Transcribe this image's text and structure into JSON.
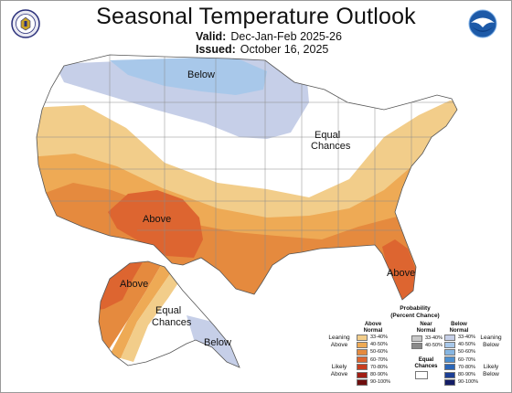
{
  "header": {
    "title": "Seasonal Temperature Outlook",
    "valid_label": "Valid:",
    "valid_value": "Dec-Jan-Feb 2025-26",
    "issued_label": "Issued:",
    "issued_value": "October 16, 2025"
  },
  "logos": {
    "left": "doc-seal-icon",
    "right": "noaa-logo-icon"
  },
  "map_labels": {
    "below_north": "Below",
    "equal_line1": "Equal",
    "equal_line2": "Chances",
    "above_southwest": "Above",
    "above_florida": "Above",
    "above_alaska": "Above",
    "alaska_equal_line1": "Equal",
    "alaska_equal_line2": "Chances",
    "below_alaska": "Below"
  },
  "legend": {
    "title_line1": "Probability",
    "title_line2": "(Percent Chance)",
    "above_head_line1": "Above",
    "above_head_line2": "Normal",
    "near_head_line1": "Near",
    "near_head_line2": "Normal",
    "below_head_line1": "Below",
    "below_head_line2": "Normal",
    "leaning_above_line1": "Leaning",
    "leaning_above_line2": "Above",
    "likely_above_line1": "Likely",
    "likely_above_line2": "Above",
    "leaning_below_line1": "Leaning",
    "leaning_below_line2": "Below",
    "likely_below_line1": "Likely",
    "likely_below_line2": "Below",
    "equal_line1": "Equal",
    "equal_line2": "Chances",
    "above": [
      {
        "range": "33-40%",
        "color": "#f2cd8a"
      },
      {
        "range": "40-50%",
        "color": "#eeaa55"
      },
      {
        "range": "50-60%",
        "color": "#e58a3e"
      },
      {
        "range": "60-70%",
        "color": "#dd6530"
      },
      {
        "range": "70-80%",
        "color": "#c83c1e"
      },
      {
        "range": "80-90%",
        "color": "#a11e14"
      },
      {
        "range": "90-100%",
        "color": "#6e0e0e"
      }
    ],
    "near": [
      {
        "range": "33-40%",
        "color": "#c8c8c8"
      },
      {
        "range": "40-50%",
        "color": "#8a8a8a"
      }
    ],
    "below": [
      {
        "range": "33-40%",
        "color": "#c6cfe8"
      },
      {
        "range": "40-50%",
        "color": "#a8c8ea"
      },
      {
        "range": "50-60%",
        "color": "#86b6e2"
      },
      {
        "range": "60-70%",
        "color": "#4c8fd0"
      },
      {
        "range": "70-80%",
        "color": "#2a66b8"
      },
      {
        "range": "80-90%",
        "color": "#1c3f95"
      },
      {
        "range": "90-100%",
        "color": "#141d66"
      }
    ]
  }
}
